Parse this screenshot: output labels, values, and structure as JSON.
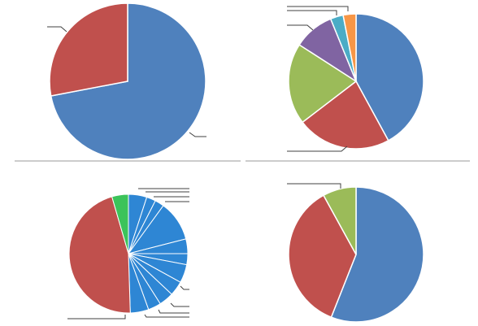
{
  "colors": {
    "blue": "#4f81bd",
    "red": "#c0504d",
    "green": "#9bbb59",
    "purple": "#8064a2",
    "teal": "#4bacc6",
    "orange": "#f79646",
    "bright_blue": "#2e86d4",
    "bright_green": "#3cc35a",
    "leader": "#404040",
    "divider": "#999999"
  },
  "chart_data": [
    {
      "type": "pie",
      "values": [
        72,
        28
      ],
      "colors": [
        "blue",
        "red"
      ]
    },
    {
      "type": "pie",
      "values": [
        41,
        22,
        19,
        9.5,
        3,
        3
      ],
      "colors": [
        "blue",
        "red",
        "green",
        "purple",
        "teal",
        "orange"
      ]
    },
    {
      "type": "pie",
      "values": [
        5,
        2.5,
        2.5,
        11,
        4,
        3,
        5,
        4,
        4,
        3.5,
        5,
        46,
        4.5
      ],
      "colors": [
        "bright_blue",
        "bright_blue",
        "bright_blue",
        "bright_blue",
        "bright_blue",
        "bright_blue",
        "bright_blue",
        "bright_blue",
        "bright_blue",
        "bright_blue",
        "bright_blue",
        "red",
        "bright_green"
      ]
    },
    {
      "type": "pie",
      "values": [
        56,
        36,
        8
      ],
      "colors": [
        "blue",
        "red",
        "green"
      ]
    }
  ]
}
